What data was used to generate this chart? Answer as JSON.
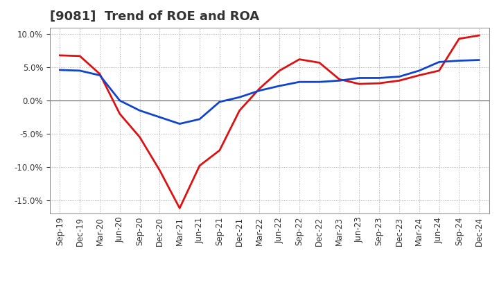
{
  "title": "[9081]  Trend of ROE and ROA",
  "x_labels": [
    "Sep-19",
    "Dec-19",
    "Mar-20",
    "Jun-20",
    "Sep-20",
    "Dec-20",
    "Mar-21",
    "Jun-21",
    "Sep-21",
    "Dec-21",
    "Mar-22",
    "Jun-22",
    "Sep-22",
    "Dec-22",
    "Mar-23",
    "Jun-23",
    "Sep-23",
    "Dec-23",
    "Mar-24",
    "Jun-24",
    "Sep-24",
    "Dec-24"
  ],
  "roe": [
    6.8,
    6.7,
    4.0,
    -2.0,
    -5.5,
    -10.5,
    -16.2,
    -9.8,
    -7.5,
    -1.5,
    1.8,
    4.5,
    6.2,
    5.7,
    3.2,
    2.5,
    2.6,
    3.0,
    3.8,
    4.5,
    9.3,
    9.8
  ],
  "roa": [
    4.6,
    4.5,
    3.8,
    0.0,
    -1.5,
    -2.5,
    -3.5,
    -2.8,
    -0.2,
    0.5,
    1.5,
    2.2,
    2.8,
    2.8,
    3.0,
    3.4,
    3.4,
    3.6,
    4.5,
    5.8,
    6.0,
    6.1
  ],
  "roe_color": "#dd1111",
  "roa_color": "#1144cc",
  "background_color": "#ffffff",
  "grid_color": "#aaaaaa",
  "ylim": [
    -17,
    11
  ],
  "yticks": [
    -15,
    -10,
    -5,
    0,
    5,
    10
  ],
  "line_width": 2.0,
  "title_fontsize": 13,
  "title_color": "#333333",
  "legend_fontsize": 10,
  "tick_fontsize": 8.5
}
